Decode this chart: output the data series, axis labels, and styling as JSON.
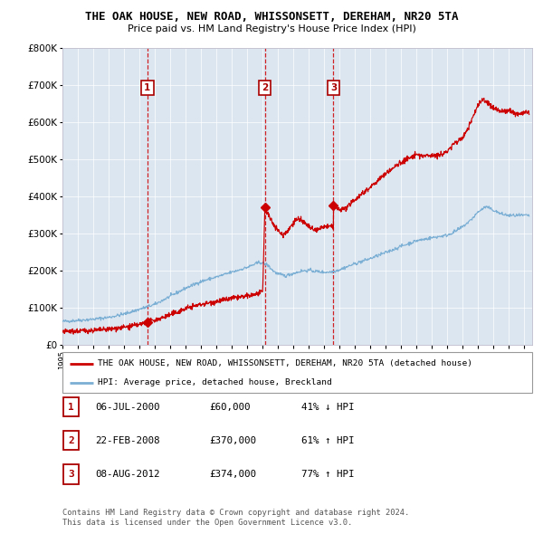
{
  "title": "THE OAK HOUSE, NEW ROAD, WHISSONSETT, DEREHAM, NR20 5TA",
  "subtitle": "Price paid vs. HM Land Registry's House Price Index (HPI)",
  "ylim": [
    0,
    800000
  ],
  "yticks": [
    0,
    100000,
    200000,
    300000,
    400000,
    500000,
    600000,
    700000,
    800000
  ],
  "ytick_labels": [
    "£0",
    "£100K",
    "£200K",
    "£300K",
    "£400K",
    "£500K",
    "£600K",
    "£700K",
    "£800K"
  ],
  "xlim_start": 1995.0,
  "xlim_end": 2025.5,
  "sale_color": "#cc0000",
  "hpi_color": "#7bafd4",
  "background_color": "#dce6f1",
  "sale_dates": [
    2000.51,
    2008.14,
    2012.6
  ],
  "sale_prices": [
    60000,
    370000,
    374000
  ],
  "sale_labels": [
    "1",
    "2",
    "3"
  ],
  "sale_info": [
    {
      "label": "1",
      "date": "06-JUL-2000",
      "price": "£60,000",
      "hpi": "41% ↓ HPI"
    },
    {
      "label": "2",
      "date": "22-FEB-2008",
      "price": "£370,000",
      "hpi": "61% ↑ HPI"
    },
    {
      "label": "3",
      "date": "08-AUG-2012",
      "price": "£374,000",
      "hpi": "77% ↑ HPI"
    }
  ],
  "legend_house": "THE OAK HOUSE, NEW ROAD, WHISSONSETT, DEREHAM, NR20 5TA (detached house)",
  "legend_hpi": "HPI: Average price, detached house, Breckland",
  "footer1": "Contains HM Land Registry data © Crown copyright and database right 2024.",
  "footer2": "This data is licensed under the Open Government Licence v3.0."
}
